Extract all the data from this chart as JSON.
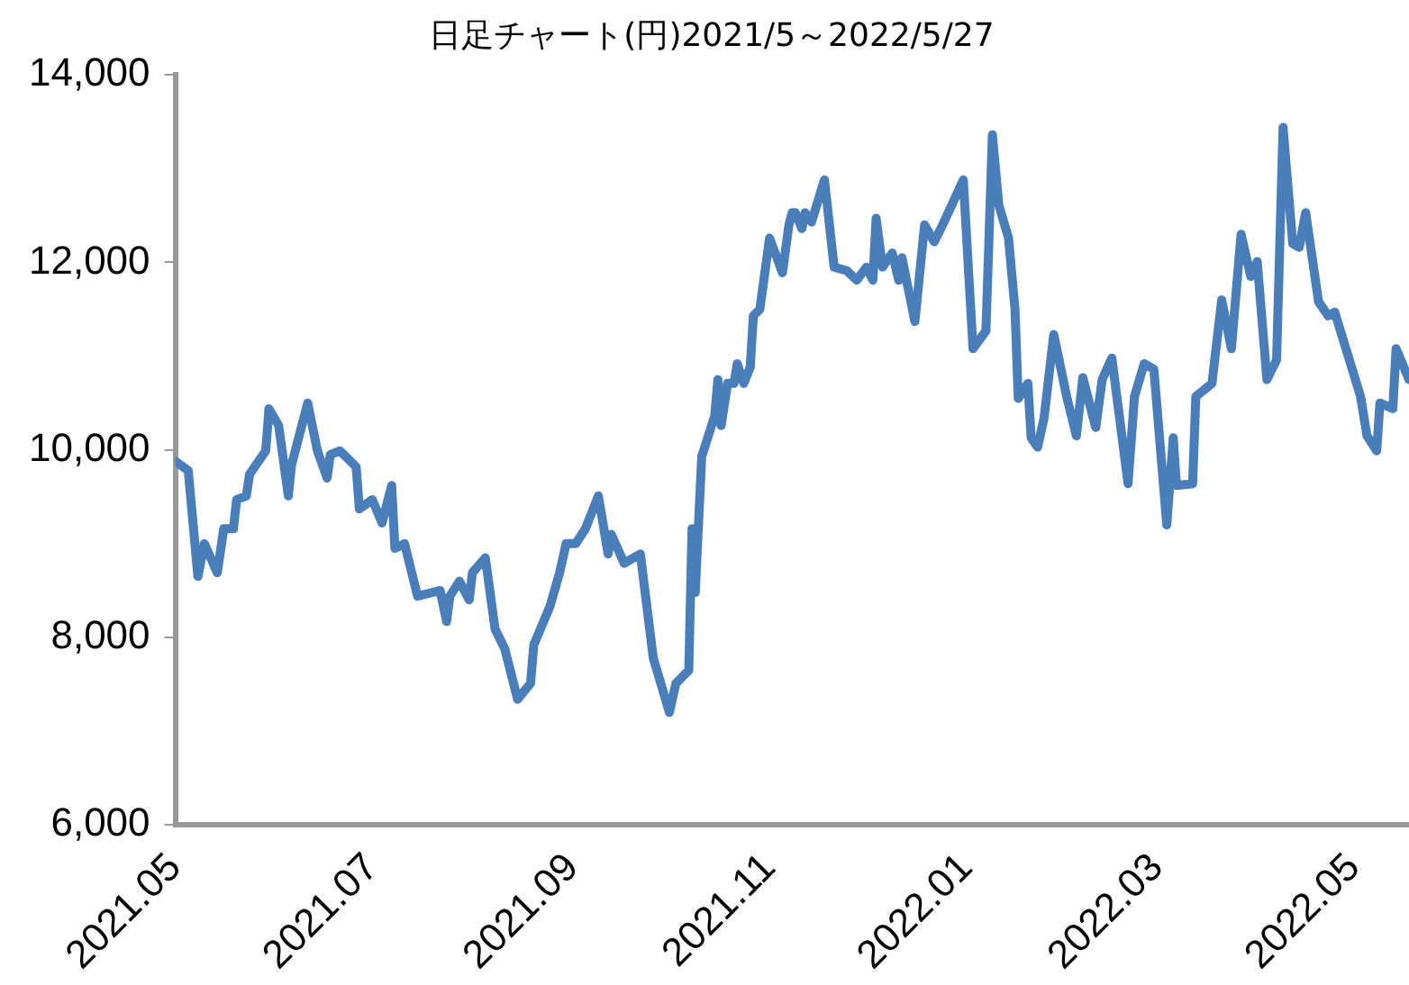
{
  "chart_data": {
    "type": "line",
    "title": "日足チャート(円)2021/5～2022/5/27",
    "x": [
      "2021-05-01",
      "2021-05-05",
      "2021-05-08",
      "2021-05-10",
      "2021-05-14",
      "2021-05-16",
      "2021-05-19",
      "2021-05-20",
      "2021-05-23",
      "2021-05-24",
      "2021-05-29",
      "2021-05-30",
      "2021-06-02",
      "2021-06-05",
      "2021-06-06",
      "2021-06-11",
      "2021-06-14",
      "2021-06-17",
      "2021-06-18",
      "2021-06-21",
      "2021-06-26",
      "2021-06-27",
      "2021-07-01",
      "2021-07-04",
      "2021-07-07",
      "2021-07-08",
      "2021-07-11",
      "2021-07-15",
      "2021-07-22",
      "2021-07-24",
      "2021-07-25",
      "2021-07-28",
      "2021-07-31",
      "2021-08-01",
      "2021-08-05",
      "2021-08-08",
      "2021-08-11",
      "2021-08-15",
      "2021-08-19",
      "2021-08-20",
      "2021-08-25",
      "2021-08-28",
      "2021-08-30",
      "2021-09-02",
      "2021-09-05",
      "2021-09-09",
      "2021-09-12",
      "2021-09-13",
      "2021-09-17",
      "2021-09-22",
      "2021-09-26",
      "2021-10-01",
      "2021-10-03",
      "2021-10-07",
      "2021-10-08",
      "2021-10-09",
      "2021-10-11",
      "2021-10-15",
      "2021-10-16",
      "2021-10-17",
      "2021-10-19",
      "2021-10-21",
      "2021-10-22",
      "2021-10-24",
      "2021-10-26",
      "2021-10-27",
      "2021-10-29",
      "2021-11-01",
      "2021-11-05",
      "2021-11-07",
      "2021-11-08",
      "2021-11-09",
      "2021-11-11",
      "2021-11-12",
      "2021-11-14",
      "2021-11-18",
      "2021-11-21",
      "2021-11-25",
      "2021-11-28",
      "2021-12-01",
      "2021-12-03",
      "2021-12-04",
      "2021-12-06",
      "2021-12-09",
      "2021-12-11",
      "2021-12-12",
      "2021-12-16",
      "2021-12-19",
      "2021-12-22",
      "2021-12-25",
      "2021-12-31",
      "2022-01-03",
      "2022-01-07",
      "2022-01-09",
      "2022-01-11",
      "2022-01-14",
      "2022-01-16",
      "2022-01-17",
      "2022-01-20",
      "2022-01-21",
      "2022-01-23",
      "2022-01-25",
      "2022-01-28",
      "2022-02-01",
      "2022-02-04",
      "2022-02-06",
      "2022-02-10",
      "2022-02-12",
      "2022-02-15",
      "2022-02-20",
      "2022-02-22",
      "2022-02-25",
      "2022-02-28",
      "2022-03-04",
      "2022-03-06",
      "2022-03-07",
      "2022-03-12",
      "2022-03-13",
      "2022-03-18",
      "2022-03-21",
      "2022-03-24",
      "2022-03-27",
      "2022-03-30",
      "2022-04-01",
      "2022-04-04",
      "2022-04-07",
      "2022-04-09",
      "2022-04-12",
      "2022-04-14",
      "2022-04-16",
      "2022-04-20",
      "2022-04-23",
      "2022-04-25",
      "2022-05-03",
      "2022-05-05",
      "2022-05-08",
      "2022-05-09",
      "2022-05-13",
      "2022-05-14",
      "2022-05-18"
    ],
    "series": [
      {
        "color": "#4a7ebb",
        "values": [
          9880,
          9780,
          8650,
          9000,
          8690,
          9160,
          9160,
          9470,
          9510,
          9740,
          9990,
          10440,
          10260,
          9510,
          9840,
          10500,
          9990,
          9700,
          9950,
          9990,
          9820,
          9370,
          9470,
          9220,
          9620,
          8950,
          9000,
          8440,
          8500,
          8170,
          8440,
          8600,
          8400,
          8690,
          8850,
          8090,
          7880,
          7340,
          7510,
          7920,
          8330,
          8690,
          9000,
          9000,
          9160,
          9510,
          8890,
          9100,
          8790,
          8890,
          7780,
          7200,
          7510,
          7650,
          9160,
          8480,
          9930,
          10360,
          10750,
          10260,
          10710,
          10710,
          10920,
          10710,
          10880,
          11430,
          11500,
          12260,
          11890,
          12400,
          12530,
          12530,
          12360,
          12530,
          12430,
          12880,
          11950,
          11910,
          11810,
          11950,
          11810,
          12470,
          11950,
          12100,
          11810,
          12050,
          11370,
          12400,
          12220,
          12430,
          12880,
          11080,
          11270,
          13360,
          12610,
          12260,
          11500,
          10550,
          10710,
          10130,
          10030,
          10340,
          11230,
          10570,
          10150,
          10770,
          10240,
          10750,
          10980,
          9640,
          10570,
          10920,
          10860,
          9200,
          10130,
          9620,
          9640,
          10570,
          10710,
          11600,
          11080,
          12300,
          11850,
          12010,
          10750,
          10960,
          13440,
          12200,
          12160,
          12530,
          11580,
          11430,
          11470,
          10570,
          10150,
          9990,
          10500,
          10440,
          11080,
          10750
        ]
      }
    ],
    "xlim": [
      "2021-05-01",
      "2022-05-18"
    ],
    "xticks": [
      {
        "value": "2021-05-01",
        "label": "2021.05"
      },
      {
        "value": "2021-07-01",
        "label": "2021.07"
      },
      {
        "value": "2021-09-01",
        "label": "2021.09"
      },
      {
        "value": "2021-11-01",
        "label": "2021.11"
      },
      {
        "value": "2022-01-01",
        "label": "2022.01"
      },
      {
        "value": "2022-03-01",
        "label": "2022.03"
      },
      {
        "value": "2022-05-01",
        "label": "2022.05"
      }
    ],
    "ylim": [
      6000,
      14000
    ],
    "yticks": [
      {
        "value": 6000,
        "label": "6,000"
      },
      {
        "value": 8000,
        "label": "8,000"
      },
      {
        "value": 10000,
        "label": "10,000"
      },
      {
        "value": 12000,
        "label": "12,000"
      },
      {
        "value": 14000,
        "label": "14,000"
      }
    ],
    "grid": false,
    "legend": false,
    "marker": "none",
    "line_style": "solid"
  }
}
